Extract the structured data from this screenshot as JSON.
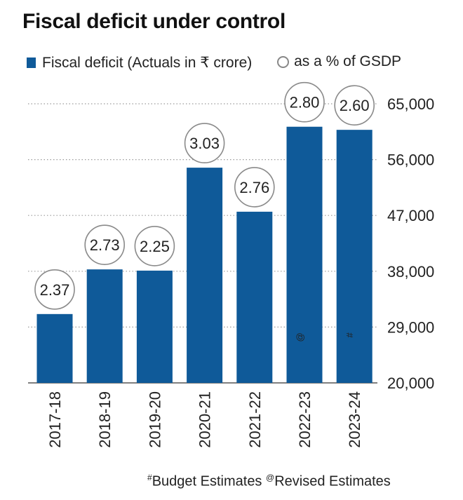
{
  "chart_data": {
    "type": "bar",
    "title": "Fiscal deficit under control",
    "categories": [
      "2017-18",
      "2018-19",
      "2019-20",
      "2020-21",
      "2021-22",
      "2022-23",
      "2023-24"
    ],
    "category_marks": [
      "",
      "",
      "",
      "",
      "",
      "@",
      "#"
    ],
    "series": [
      {
        "name": "Fiscal deficit (Actuals in ₹ crore)",
        "values": [
          31100,
          38300,
          38100,
          54700,
          47600,
          61300,
          60800
        ]
      }
    ],
    "gsdp_percent": {
      "name": "as a % of GSDP",
      "labels": [
        "2.37",
        "2.73",
        "2.25",
        "3.03",
        "2.76",
        "2.80",
        "2.60"
      ]
    },
    "yticks": [
      20000,
      29000,
      38000,
      47000,
      56000,
      65000
    ],
    "ytick_labels": [
      "20,000",
      "29,000",
      "38,000",
      "47,000",
      "56,000",
      "65,000"
    ],
    "ylim": [
      20000,
      65000
    ],
    "grid": "dotted-horizontal",
    "y_axis_position": "right",
    "legend_position": "top",
    "colors": {
      "bar": "#0f5a99",
      "circle_stroke": "#8a8a8a",
      "grid": "#9a9a9a"
    }
  },
  "footnote": {
    "mark_1": "#",
    "text_1": "Budget Estimates",
    "mark_2": "@",
    "text_2": "Revised Estimates"
  }
}
